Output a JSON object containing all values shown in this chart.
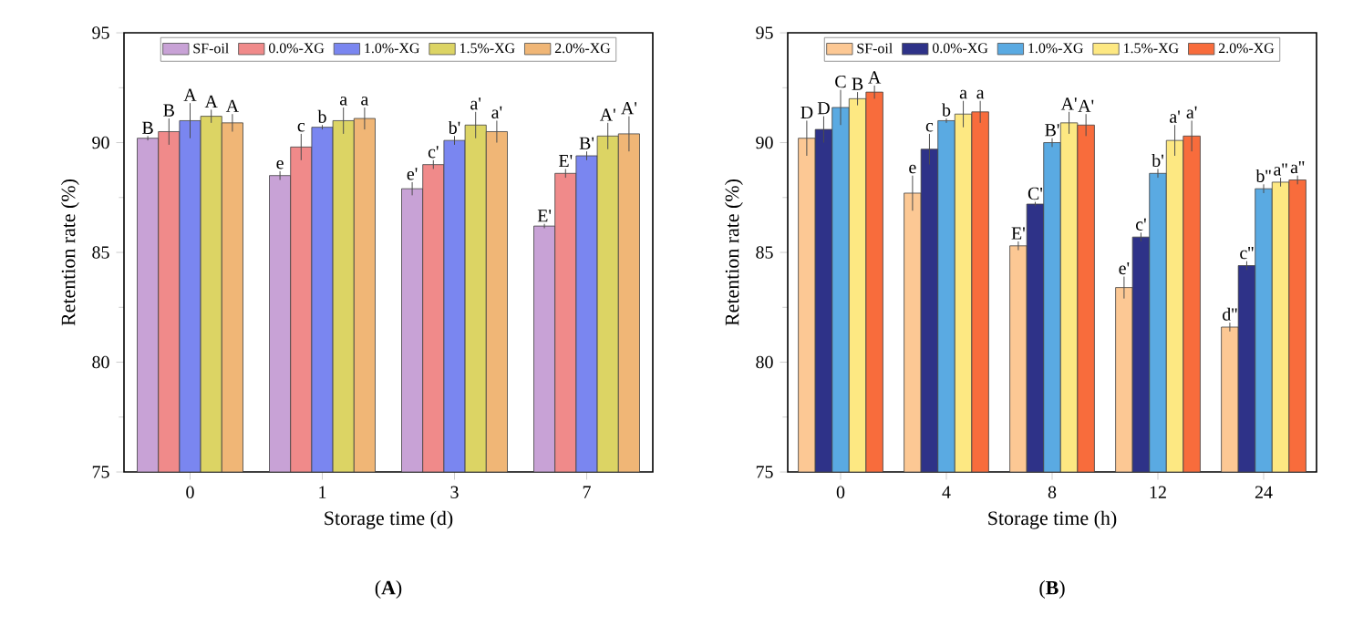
{
  "chart_data": [
    {
      "type": "bar",
      "title": "(**A**)",
      "xlabel": "Storage time (d)",
      "ylabel": "Retention rate (%)",
      "categories": [
        "0",
        "1",
        "3",
        "7"
      ],
      "ylim": [
        75,
        95
      ],
      "yticks": [
        75,
        80,
        85,
        90,
        95
      ],
      "legend": "top",
      "grid": false,
      "series": [
        {
          "name": "SF-oil",
          "color": "#c8a2d6",
          "values": [
            90.2,
            88.5,
            87.9,
            86.2
          ],
          "errors": [
            0.1,
            0.2,
            0.3,
            0.1
          ],
          "value_labels": [
            "B",
            "e",
            "e'",
            "E'"
          ]
        },
        {
          "name": "0.0%-XG",
          "color": "#f08a8a",
          "values": [
            90.5,
            89.8,
            89.0,
            88.6
          ],
          "errors": [
            0.6,
            0.6,
            0.2,
            0.2
          ],
          "value_labels": [
            "B",
            "c",
            "c'",
            "E'"
          ]
        },
        {
          "name": "1.0%-XG",
          "color": "#7a86f0",
          "values": [
            91.0,
            90.7,
            90.1,
            89.4
          ],
          "errors": [
            0.8,
            0.1,
            0.2,
            0.2
          ],
          "value_labels": [
            "A",
            "b",
            "b'",
            "B'"
          ]
        },
        {
          "name": "1.5%-XG",
          "color": "#dcd464",
          "values": [
            91.2,
            91.0,
            90.8,
            90.3
          ],
          "errors": [
            0.3,
            0.6,
            0.6,
            0.6
          ],
          "value_labels": [
            "A",
            "a",
            "a'",
            "A'"
          ]
        },
        {
          "name": "2.0%-XG",
          "color": "#f0b676",
          "values": [
            90.9,
            91.1,
            90.5,
            90.4
          ],
          "errors": [
            0.4,
            0.5,
            0.5,
            0.8
          ],
          "value_labels": [
            "A",
            "a",
            "a'",
            "A'"
          ]
        }
      ]
    },
    {
      "type": "bar",
      "title": "(**B**)",
      "xlabel": "Storage time (h)",
      "ylabel": "Retention rate (%)",
      "categories": [
        "0",
        "4",
        "8",
        "12",
        "24"
      ],
      "ylim": [
        75,
        95
      ],
      "yticks": [
        75,
        80,
        85,
        90,
        95
      ],
      "legend": "top",
      "grid": false,
      "series": [
        {
          "name": "SF-oil",
          "color": "#fcc894",
          "values": [
            90.2,
            87.7,
            85.3,
            83.4,
            81.6
          ],
          "errors": [
            0.8,
            0.8,
            0.2,
            0.5,
            0.2
          ],
          "value_labels": [
            "D",
            "e",
            "E'",
            "e'",
            "d''"
          ]
        },
        {
          "name": "0.0%-XG",
          "color": "#2e3288",
          "values": [
            90.6,
            89.7,
            87.2,
            85.7,
            84.4
          ],
          "errors": [
            0.6,
            0.7,
            0.1,
            0.2,
            0.2
          ],
          "value_labels": [
            "D",
            "c",
            "C'",
            "c'",
            "c''"
          ]
        },
        {
          "name": "1.0%-XG",
          "color": "#5aaae2",
          "values": [
            91.6,
            91.0,
            90.0,
            88.6,
            87.9
          ],
          "errors": [
            0.8,
            0.1,
            0.2,
            0.2,
            0.2
          ],
          "value_labels": [
            "C",
            "b",
            "B'",
            "b'",
            "b''"
          ]
        },
        {
          "name": "1.5%-XG",
          "color": "#fde882",
          "values": [
            92.0,
            91.3,
            90.9,
            90.1,
            88.2
          ],
          "errors": [
            0.3,
            0.6,
            0.5,
            0.7,
            0.2
          ],
          "value_labels": [
            "B",
            "a",
            "A'",
            "a'",
            "a''"
          ]
        },
        {
          "name": "2.0%-XG",
          "color": "#f86c3c",
          "values": [
            92.3,
            91.4,
            90.8,
            90.3,
            88.3
          ],
          "errors": [
            0.3,
            0.5,
            0.5,
            0.7,
            0.2
          ],
          "value_labels": [
            "A",
            "a",
            "A'",
            "a'",
            "a''"
          ]
        }
      ]
    }
  ]
}
